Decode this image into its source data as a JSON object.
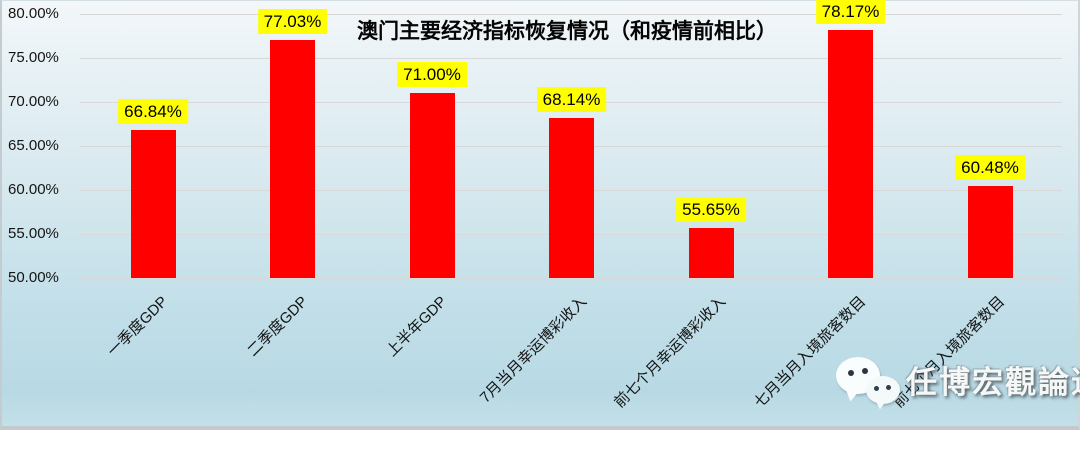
{
  "title": "澳门主要经济指标恢复情况（和疫情前相比）",
  "watermark": {
    "text": "任博宏觀論道",
    "icon": "wechat-icon"
  },
  "colors": {
    "bar": "#fe0000",
    "value_label_bg": "#ffff00",
    "value_label_text": "#000000",
    "gridline": "#d8d8d8",
    "background_top": "#f3f7f9",
    "background_bottom": "#b8d9e4"
  },
  "chart_data": {
    "type": "bar",
    "title": "澳门主要经济指标恢复情况（和疫情前相比）",
    "categories": [
      "一季度GDP",
      "二季度GDP",
      "上半年GDP",
      "7月当月幸运博彩收入",
      "前七个月幸运博彩收入",
      "七月当月入境旅客数目",
      "前七个月入境旅客数目"
    ],
    "values": [
      66.84,
      77.03,
      71.0,
      68.14,
      55.65,
      78.17,
      60.48
    ],
    "value_labels": [
      "66.84%",
      "77.03%",
      "71.00%",
      "68.14%",
      "55.65%",
      "78.17%",
      "60.48%"
    ],
    "y_ticks": [
      "80.00%",
      "75.00%",
      "70.00%",
      "65.00%",
      "60.00%",
      "55.00%",
      "50.00%"
    ],
    "ylim": [
      50,
      80
    ],
    "xlabel": "",
    "ylabel": "",
    "grid": true,
    "legend": false,
    "bar_color": "#fe0000",
    "label_bg": "#ffff00"
  }
}
